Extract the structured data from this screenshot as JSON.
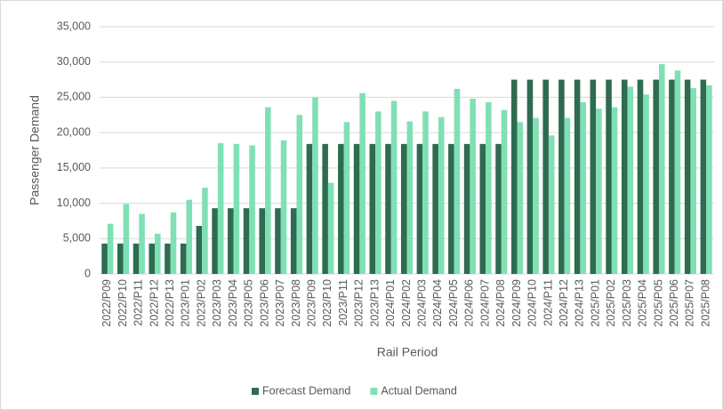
{
  "chart_data": {
    "type": "bar",
    "xlabel": "Rail Period",
    "ylabel": "Passenger Demand",
    "categories": [
      "2022/P09",
      "2022/P10",
      "2022/P11",
      "2022/P12",
      "2022/P13",
      "2023/P01",
      "2023/P02",
      "2023/P03",
      "2023/P04",
      "2023/P05",
      "2023/P06",
      "2023/P07",
      "2023/P08",
      "2023/P09",
      "2023/P10",
      "2023/P11",
      "2023/P12",
      "2023/P13",
      "2024/P01",
      "2024/P02",
      "2024/P03",
      "2024/P04",
      "2024/P05",
      "2024/P06",
      "2024/P07",
      "2024/P08",
      "2024/P09",
      "2024/P10",
      "2024/P11",
      "2024/P12",
      "2024/P13",
      "2025/P01",
      "2025/P02",
      "2025/P03",
      "2025/P04",
      "2025/P05",
      "2025/P06",
      "2025/P07",
      "2025/P08"
    ],
    "series": [
      {
        "name": "Forecast Demand",
        "color": "#2e6b50",
        "values": [
          4300,
          4300,
          4300,
          4300,
          4300,
          4300,
          6800,
          9300,
          9300,
          9300,
          9300,
          9300,
          9300,
          18400,
          18400,
          18400,
          18400,
          18400,
          18400,
          18400,
          18400,
          18400,
          18400,
          18400,
          18400,
          18400,
          27500,
          27500,
          27500,
          27500,
          27500,
          27500,
          27500,
          27500,
          27500,
          27500,
          27500,
          27500,
          27500
        ]
      },
      {
        "name": "Actual Demand",
        "color": "#80e0b5",
        "values": [
          7100,
          9900,
          8500,
          5700,
          8700,
          10500,
          12200,
          18500,
          18400,
          18200,
          23600,
          18900,
          22500,
          25000,
          12900,
          21500,
          25600,
          23000,
          24500,
          21600,
          23000,
          22200,
          26200,
          24800,
          24300,
          23200,
          21500,
          22100,
          19600,
          22100,
          24300,
          23400,
          23600,
          26500,
          25400,
          29700,
          28800,
          26300,
          26700
        ]
      }
    ],
    "ylim": [
      0,
      35000
    ],
    "yticks": [
      0,
      {
        "value": 5000,
        "label": "5,000"
      },
      {
        "value": 10000,
        "label": "10,000"
      },
      {
        "value": 15000,
        "label": "15,000"
      },
      {
        "value": 20000,
        "label": "20,000"
      },
      {
        "value": 25000,
        "label": "25,000"
      },
      {
        "value": 30000,
        "label": "30,000"
      },
      {
        "value": 35000,
        "label": "35,000"
      }
    ],
    "grid": true,
    "legend": "bottom"
  }
}
